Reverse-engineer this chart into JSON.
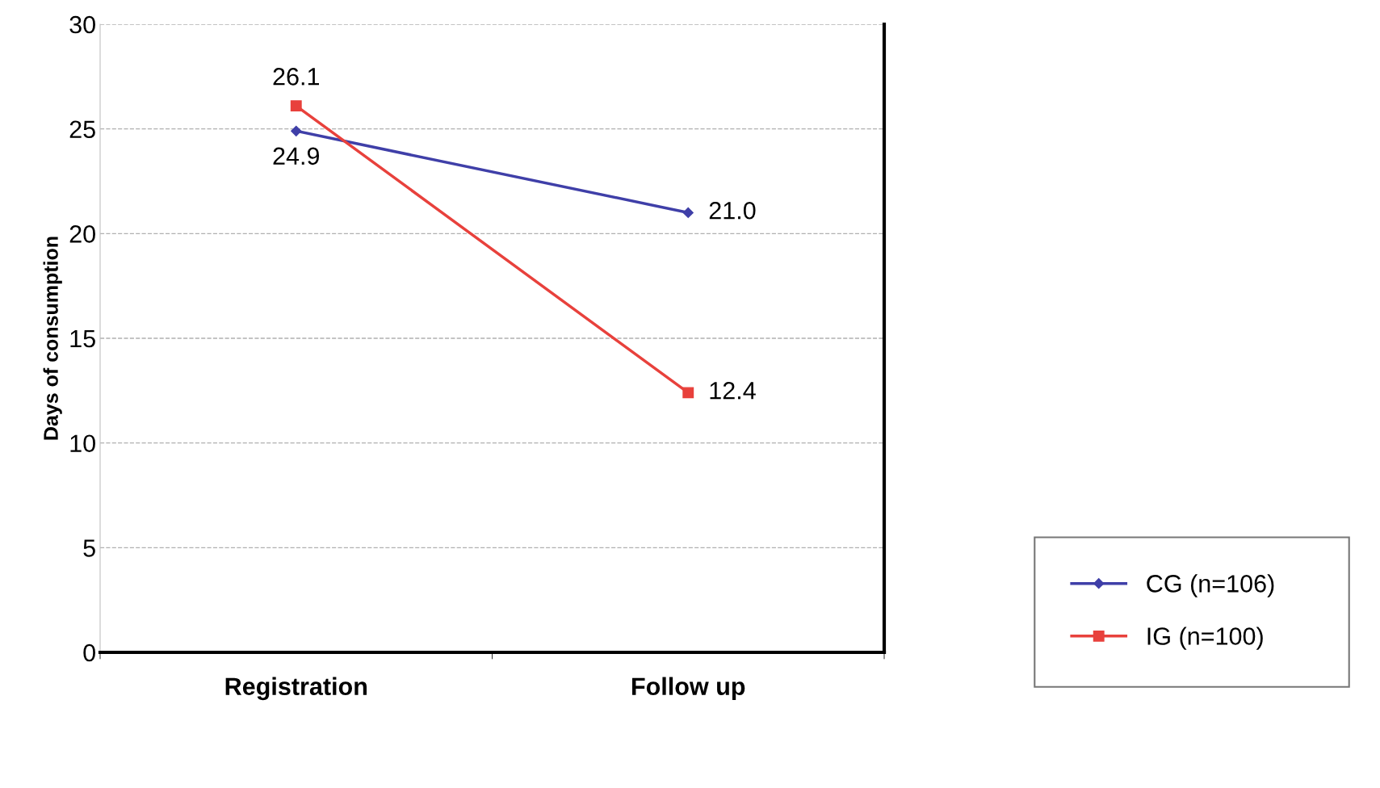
{
  "chart_data": {
    "type": "line",
    "ylabel": "Days of consumption",
    "categories": [
      "Registration",
      "Follow up"
    ],
    "series": [
      {
        "name": "CG (n=106)",
        "color": "#3f3fa8",
        "values": [
          24.9,
          21.0
        ],
        "value_labels": [
          "24.9",
          "21.0"
        ],
        "marker": "diamond"
      },
      {
        "name": "IG (n=100)",
        "color": "#e8413c",
        "values": [
          26.1,
          12.4
        ],
        "value_labels": [
          "26.1",
          "12.4"
        ],
        "marker": "square"
      }
    ],
    "ylim": [
      0,
      30
    ],
    "yticks": [
      0,
      5,
      10,
      15,
      20,
      25,
      30
    ],
    "grid": "y",
    "legend": "right",
    "line_style": "solid"
  }
}
